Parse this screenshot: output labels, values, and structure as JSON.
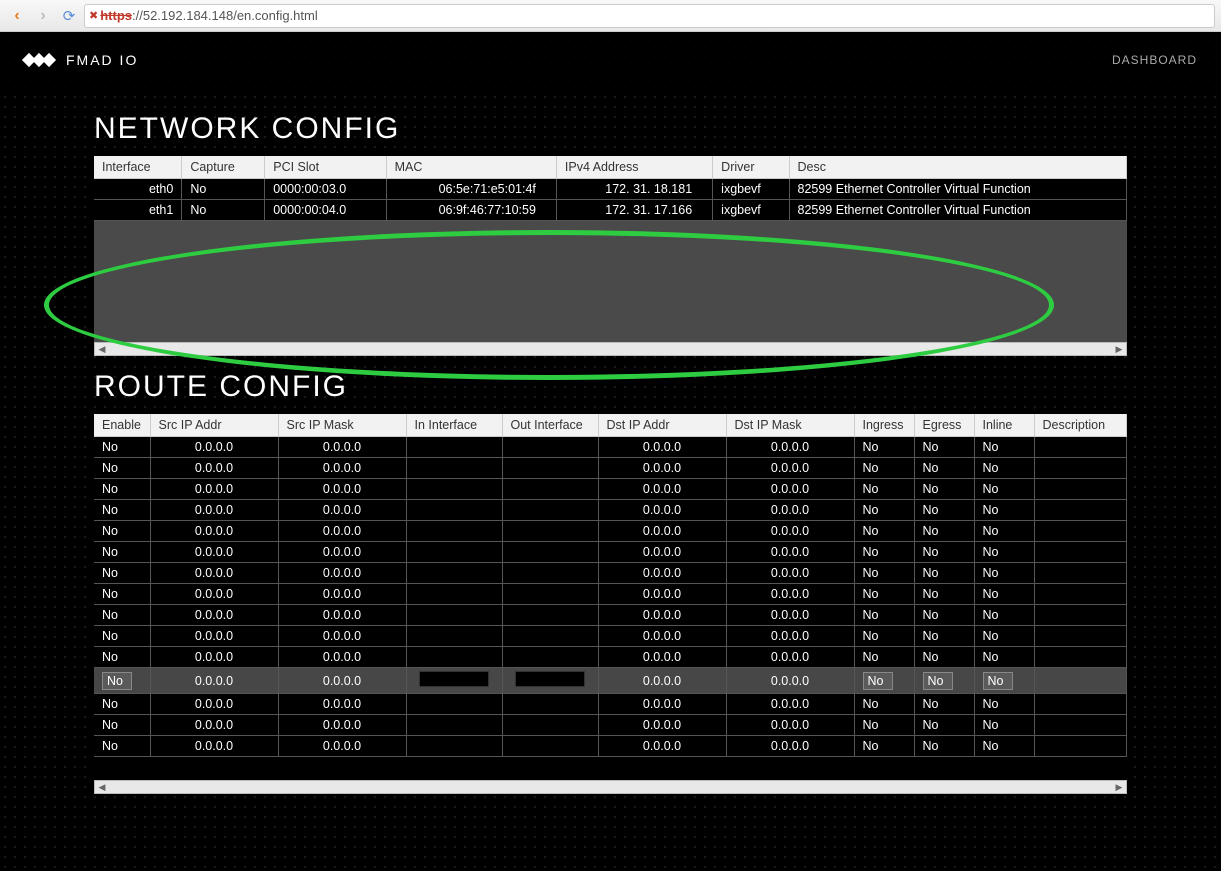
{
  "browser": {
    "url_scheme": "https",
    "url_rest": "://52.192.184.148/en.config.html"
  },
  "header": {
    "brand": "FMAD IO",
    "nav_dashboard": "DASHBOARD"
  },
  "network": {
    "title": "NETWORK CONFIG",
    "columns": [
      "Interface",
      "Capture",
      "PCI Slot",
      "MAC",
      "IPv4 Address",
      "Driver",
      "Desc"
    ],
    "rows": [
      {
        "iface": "eth0",
        "capture": "No",
        "pci": "0000:00:03.0",
        "mac": "06:5e:71:e5:01:4f",
        "ip": "172. 31. 18.181",
        "driver": "ixgbevf",
        "desc": "82599 Ethernet Controller Virtual Function"
      },
      {
        "iface": "eth1",
        "capture": "No",
        "pci": "0000:00:04.0",
        "mac": "06:9f:46:77:10:59",
        "ip": "172. 31. 17.166",
        "driver": "ixgbevf",
        "desc": "82599 Ethernet Controller Virtual Function"
      }
    ]
  },
  "route": {
    "title": "ROUTE CONFIG",
    "columns": [
      "Enable",
      "Src IP Addr",
      "Src IP Mask",
      "In Interface",
      "Out Interface",
      "Dst IP Addr",
      "Dst IP Mask",
      "Ingress",
      "Egress",
      "Inline",
      "Description"
    ],
    "highlighted_row_index": 11,
    "rows_count": 15,
    "default_row": {
      "enable": "No",
      "srcip": "0.0.0.0",
      "srcmask": "0.0.0.0",
      "inif": "",
      "outif": "",
      "dstip": "0.0.0.0",
      "dstmask": "0.0.0.0",
      "ingress": "No",
      "egress": "No",
      "inline": "No",
      "desc": ""
    }
  },
  "colors": {
    "highlight_ellipse": "#2ecc40",
    "page_bg": "#000000",
    "panel_bg": "#4a4a4a",
    "header_bg": "#f2f2f2",
    "cell_bg": "#000000",
    "text": "#ffffff"
  }
}
